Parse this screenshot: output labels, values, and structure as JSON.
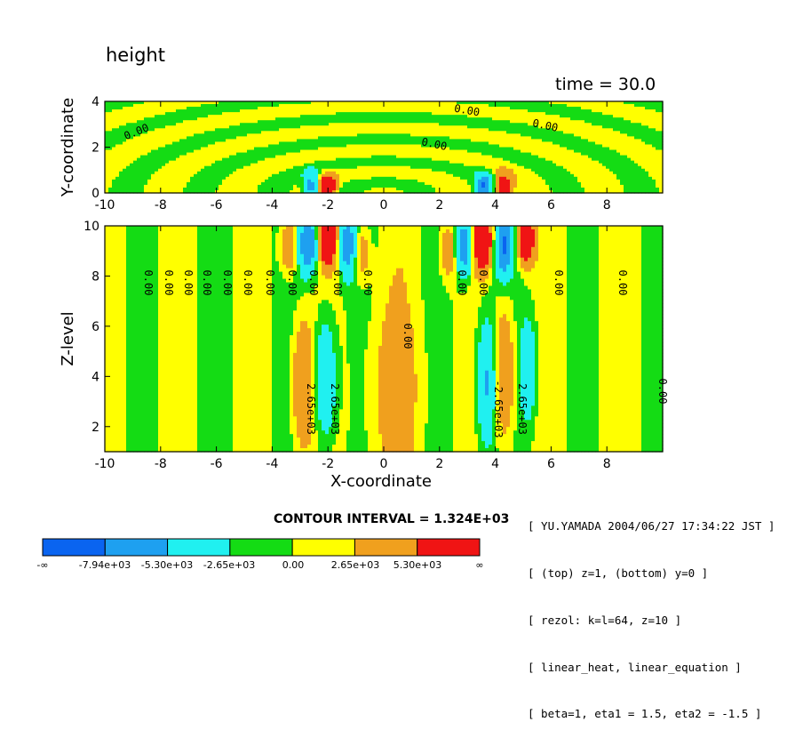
{
  "title": "height",
  "time_label": "time = 30.0",
  "contour_interval": "CONTOUR INTERVAL = 1.324E+03",
  "info_lines": [
    "[ YU.YAMADA 2004/06/27 17:34:22 JST ]",
    "[ (top) z=1, (bottom) y=0 ]",
    "[ rezol: k=l=64, z=10 ]",
    "[ linear_heat, linear_equation ]",
    "[ beta=1, eta1 = 1.5, eta2 = -1.5 ]"
  ],
  "colors": {
    "level_colors": [
      "#0a64f0",
      "#1ea0f0",
      "#20f0f0",
      "#14dc14",
      "#ffff00",
      "#f0a01e",
      "#f01414"
    ]
  },
  "chart_data": [
    {
      "type": "heatmap",
      "panel": "top",
      "xlabel": "",
      "ylabel": "Y-coordinate",
      "xlim": [
        -10,
        10
      ],
      "ylim": [
        0,
        4
      ],
      "xticks": [
        "-10",
        "-8",
        "-6",
        "-4",
        "-2",
        "0",
        "2",
        "4",
        "6",
        "8"
      ],
      "yticks": [
        "0",
        "2",
        "4"
      ],
      "contour_labels": [
        "0.00",
        "0.00",
        "0.00",
        "0.00"
      ]
    },
    {
      "type": "heatmap",
      "panel": "bottom",
      "xlabel": "X-coordinate",
      "ylabel": "Z-level",
      "xlim": [
        -10,
        10
      ],
      "ylim": [
        1,
        10
      ],
      "xticks": [
        "-10",
        "-8",
        "-6",
        "-4",
        "-2",
        "0",
        "2",
        "4",
        "6",
        "8"
      ],
      "yticks": [
        "2",
        "4",
        "6",
        "8",
        "10"
      ],
      "contour_labels": [
        "0.00",
        "0.00",
        "0.00",
        "0.00",
        "0.00",
        "0.00",
        "0.00",
        "0.00",
        "0.00",
        "0.00",
        "0.00",
        "0.00",
        "0.00",
        "0.00",
        "0.00",
        "0.00",
        "2.65e+03",
        "2.65e+03",
        "-2.65e+03",
        "2.65e+03"
      ]
    },
    {
      "type": "colorbar",
      "tick_labels": [
        "-∞",
        "-7.94e+03",
        "-5.30e+03",
        "-2.65e+03",
        "0.00",
        "2.65e+03",
        "5.30e+03",
        "∞"
      ],
      "values": [
        -7940.0,
        -5300.0,
        -2650.0,
        0,
        2650.0,
        5300.0
      ]
    }
  ]
}
